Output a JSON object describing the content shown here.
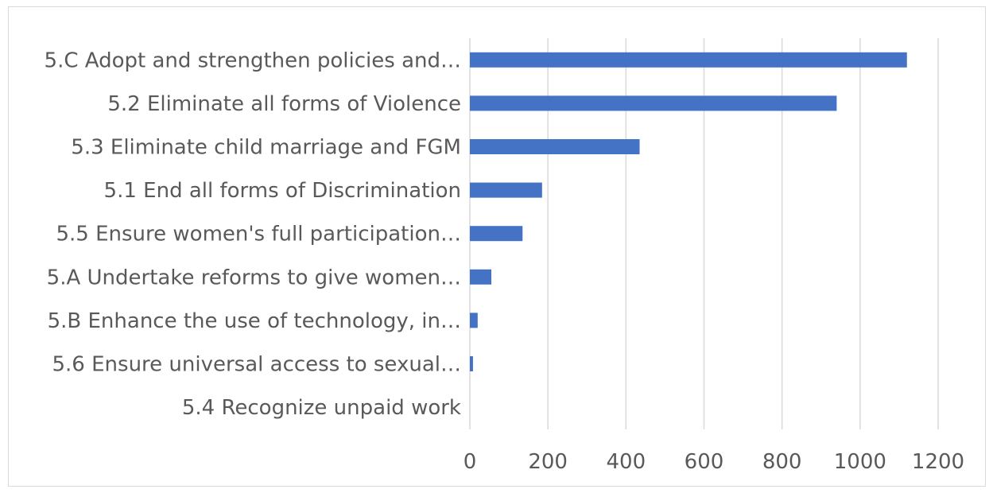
{
  "chart_data": {
    "type": "bar",
    "orientation": "horizontal",
    "title": "",
    "xlabel": "",
    "ylabel": "",
    "categories": [
      "5.C Adopt and strengthen policies and…",
      "5.2 Eliminate all forms of Violence",
      "5.3 Eliminate child marriage and FGM",
      "5.1 End all forms of Discrimination",
      "5.5 Ensure women's full participation…",
      "5.A Undertake reforms to give women…",
      "5.B Enhance the use of technology, in…",
      "5.6 Ensure universal access to sexual…",
      "5.4 Recognize unpaid work"
    ],
    "values": [
      1120,
      940,
      435,
      185,
      135,
      55,
      20,
      8,
      0
    ],
    "xlim": [
      0,
      1200
    ],
    "xticks": [
      "0",
      "200",
      "400",
      "600",
      "800",
      "1000",
      "1200"
    ],
    "grid": "vertical",
    "bar_color": "#4472c4",
    "legend": "none"
  }
}
